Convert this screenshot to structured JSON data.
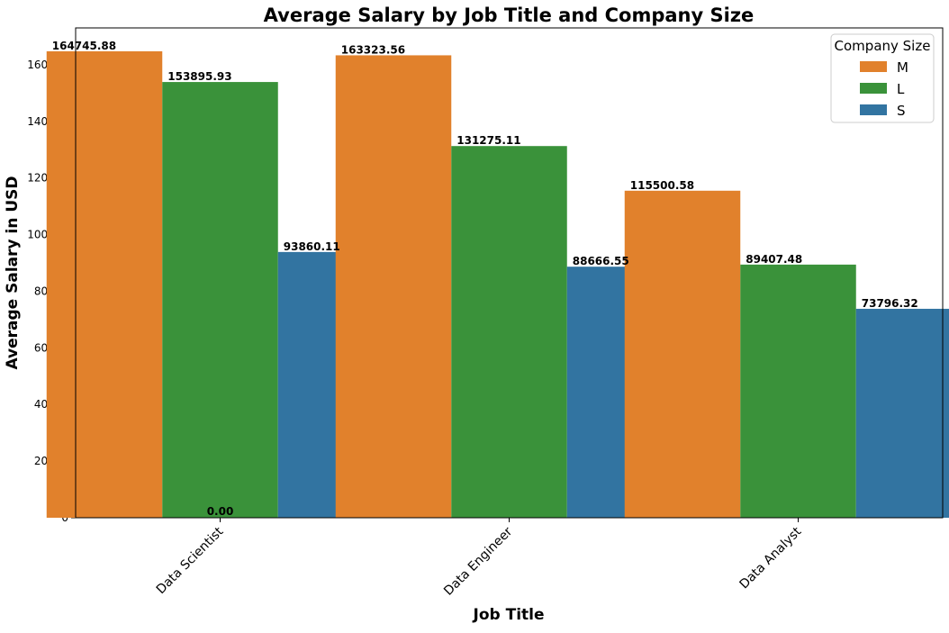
{
  "chart_data": {
    "type": "bar",
    "title": "Average Salary by Job Title and Company Size",
    "xlabel": "Job Title",
    "ylabel": "Average Salary in USD",
    "categories": [
      "Data Scientist",
      "Data Engineer",
      "Data Analyst"
    ],
    "series": [
      {
        "name": "M",
        "color": "#e1812c",
        "values": [
          164745.88,
          163323.56,
          115500.58
        ],
        "labels": [
          "164745.88",
          "163323.56",
          "115500.58"
        ]
      },
      {
        "name": "L",
        "color": "#3a923a",
        "values": [
          153895.93,
          131275.11,
          89407.48
        ],
        "labels": [
          "153895.93",
          "131275.11",
          "89407.48"
        ]
      },
      {
        "name": "S",
        "color": "#3274a1",
        "values": [
          93860.11,
          88666.55,
          73796.32
        ],
        "labels": [
          "93860.11",
          "88666.55",
          "73796.32"
        ]
      }
    ],
    "extra_annotation": "0.00",
    "ylim": [
      0,
      173000
    ],
    "yticks": [
      0,
      20000,
      40000,
      60000,
      80000,
      100000,
      120000,
      140000,
      160000
    ],
    "ytick_labels": [
      "0",
      "20000",
      "40000",
      "60000",
      "80000",
      "100000",
      "120000",
      "140000",
      "160000"
    ],
    "legend": {
      "title": "Company Size",
      "placement": "top-right"
    },
    "grid": false
  }
}
